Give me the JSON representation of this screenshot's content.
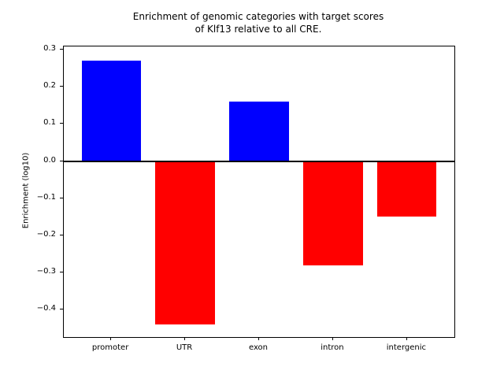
{
  "figure": {
    "background": "#ffffff",
    "axis_color": "#000000"
  },
  "chart_data": {
    "type": "bar",
    "title": "Enrichment of genomic categories with target scores\nof Klf13 relative to all CRE.",
    "ylabel": "Enrichment (log10)",
    "xlabel": "",
    "categories": [
      "promoter",
      "UTR",
      "exon",
      "intron",
      "intergenic"
    ],
    "values": [
      0.27,
      -0.44,
      0.16,
      -0.28,
      -0.15
    ],
    "bar_colors": [
      "#0000ff",
      "#ff0000",
      "#0000ff",
      "#ff0000",
      "#ff0000"
    ],
    "positive_color": "#0000ff",
    "negative_color": "#ff0000",
    "ylim": [
      -0.474,
      0.309
    ],
    "xlim": [
      -0.64,
      4.64
    ],
    "bar_width": 0.8,
    "yticks": [
      0.3,
      0.2,
      0.1,
      0.0,
      -0.1,
      -0.2,
      -0.3,
      -0.4
    ],
    "ytick_labels": [
      "0.3",
      "0.2",
      "0.1",
      "0.0",
      "−0.1",
      "−0.2",
      "−0.3",
      "−0.4"
    ],
    "grid": false,
    "legend": null,
    "zero_line": true
  }
}
